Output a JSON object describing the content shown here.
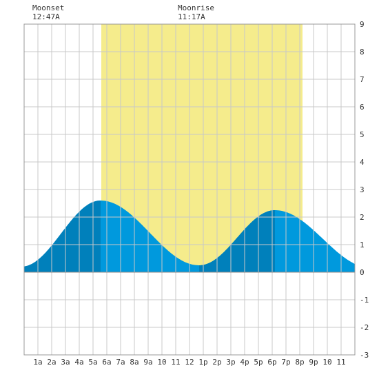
{
  "moon": {
    "moonset_label": "Moonset",
    "moonset_time": "12:47A",
    "moonrise_label": "Moonrise",
    "moonrise_time": "11:17A"
  },
  "chart_data": {
    "type": "area",
    "title": "",
    "xlabel": "",
    "ylabel": "",
    "xlim": [
      0,
      24
    ],
    "ylim": [
      -3,
      9
    ],
    "y_ticks": [
      "9",
      "8",
      "7",
      "6",
      "5",
      "4",
      "3",
      "2",
      "1",
      "0",
      "-1",
      "-2",
      "-3"
    ],
    "y_tick_values": [
      9,
      8,
      7,
      6,
      5,
      4,
      3,
      2,
      1,
      0,
      -1,
      -2,
      -3
    ],
    "x_tick_labels": [
      "1a",
      "2a",
      "3a",
      "4a",
      "5a",
      "6a",
      "7a",
      "8a",
      "9a",
      "10",
      "11",
      "12",
      "1p",
      "2p",
      "3p",
      "4p",
      "5p",
      "6p",
      "7p",
      "8p",
      "9p",
      "10",
      "11"
    ],
    "x_tick_hours": [
      1,
      2,
      3,
      4,
      5,
      6,
      7,
      8,
      9,
      10,
      11,
      12,
      13,
      14,
      15,
      16,
      17,
      18,
      19,
      20,
      21,
      22,
      23
    ],
    "grid": true,
    "daylight": {
      "start_hour": 5.6,
      "end_hour": 20.2
    },
    "tide_extremes": [
      {
        "type": "low",
        "hour": -0.2,
        "height": 0.2
      },
      {
        "type": "high",
        "hour": 5.55,
        "height": 2.6
      },
      {
        "type": "low",
        "hour": 12.7,
        "height": 0.25
      },
      {
        "type": "high",
        "hour": 18.2,
        "height": 2.25
      },
      {
        "type": "low",
        "hour": 25.2,
        "height": 0.15
      }
    ],
    "colors": {
      "daylight": "#f5ec8c",
      "tide_fill": "#0099dd",
      "tide_rising": "#0080bb",
      "grid": "#c8c8c8",
      "baseline": "#888888"
    }
  }
}
